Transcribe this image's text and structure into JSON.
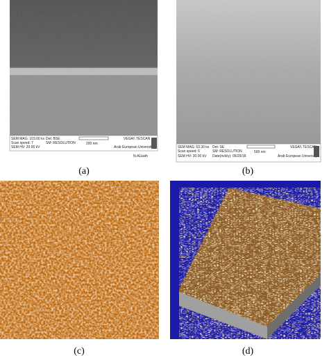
{
  "panels": [
    {
      "caption": "(a)",
      "info": [
        "SEM MAG: 103.00 kx",
        "Det: BSE",
        "Scan speed: 7",
        "SM: RESOLUTION",
        "200 nm",
        "SEM HV: 20.00 kV",
        "VEGA\\\\ TESCAN",
        "Arab European University"
      ],
      "credit": "N-ALkath"
    },
    {
      "caption": "(b)",
      "info": [
        "SEM MAG: 53.30 kx",
        "Det: SE",
        "Scan speed: 6",
        "SM: RESOLUTION",
        "500 nm",
        "SEM HV: 30.00 kV",
        "Date(m/d/y): 05/29/18",
        "VEGA\\\\ TESCAN",
        "Arab European University"
      ]
    },
    {
      "caption": "(c)"
    },
    {
      "caption": "(d)"
    }
  ]
}
